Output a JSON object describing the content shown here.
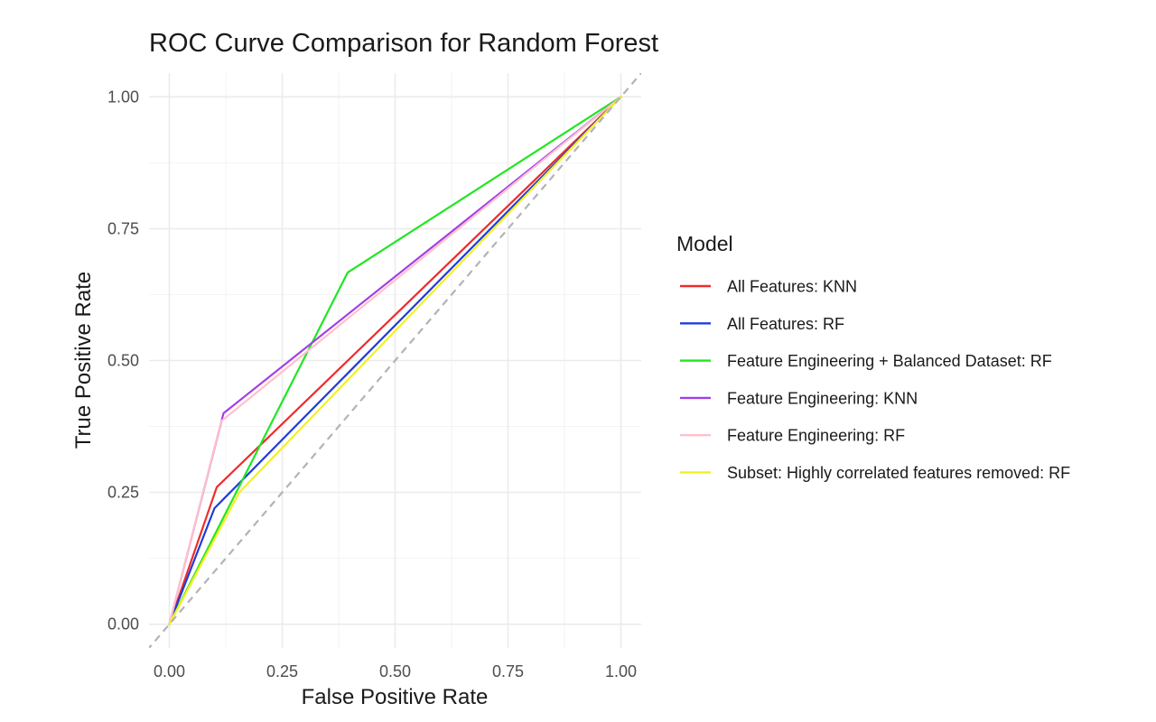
{
  "chart_data": {
    "type": "line",
    "title": "ROC Curve Comparison for Random Forest",
    "xlabel": "False Positive Rate",
    "ylabel": "True Positive Rate",
    "xlim": [
      -0.045,
      1.045
    ],
    "ylim": [
      -0.045,
      1.045
    ],
    "x_ticks": [
      0,
      0.25,
      0.5,
      0.75,
      1
    ],
    "x_tick_labels": [
      "0.00",
      "0.25",
      "0.50",
      "0.75",
      "1.00"
    ],
    "y_ticks": [
      0,
      0.25,
      0.5,
      0.75,
      1
    ],
    "y_tick_labels": [
      "0.00",
      "0.25",
      "0.50",
      "0.75",
      "1.00"
    ],
    "grid": true,
    "reference_line": {
      "from": [
        -0.05,
        -0.05
      ],
      "to": [
        1.05,
        1.05
      ],
      "style": "dashed",
      "color": "#b3b3b3"
    },
    "legend": {
      "title": "Model",
      "position": "right"
    },
    "series": [
      {
        "name": "All Features: KNN",
        "color": "#ee2c2c",
        "x": [
          0,
          0.105,
          1
        ],
        "y": [
          0,
          0.26,
          1
        ]
      },
      {
        "name": "All Features: RF",
        "color": "#1f3ddb",
        "x": [
          0,
          0.1,
          1
        ],
        "y": [
          0,
          0.22,
          1
        ]
      },
      {
        "name": "Feature Engineering + Balanced Dataset: RF",
        "color": "#22e622",
        "x": [
          0,
          0.395,
          1
        ],
        "y": [
          0,
          0.667,
          1
        ]
      },
      {
        "name": "Feature Engineering: KNN",
        "color": "#a040e8",
        "x": [
          0,
          0.12,
          1
        ],
        "y": [
          0,
          0.4,
          1
        ]
      },
      {
        "name": "Feature Engineering: RF",
        "color": "#ffc0cb",
        "x": [
          0,
          0.115,
          1
        ],
        "y": [
          0,
          0.385,
          1
        ]
      },
      {
        "name": "Subset: Highly correlated features removed: RF",
        "color": "#f5f020",
        "x": [
          0,
          0.155,
          1
        ],
        "y": [
          0,
          0.25,
          1
        ]
      }
    ]
  }
}
